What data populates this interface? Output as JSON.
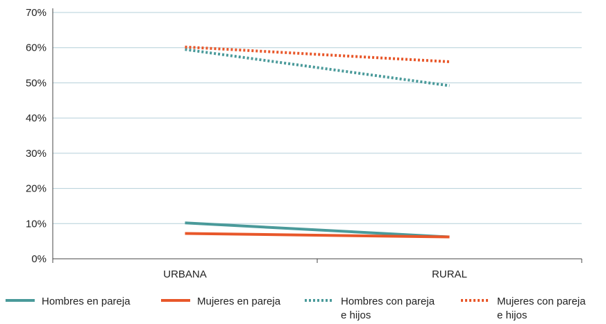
{
  "chart_data": {
    "type": "line",
    "categories": [
      "URBANA",
      "RURAL"
    ],
    "yticks": [
      "0%",
      "10%",
      "20%",
      "30%",
      "40%",
      "50%",
      "60%",
      "70%"
    ],
    "ylim": [
      0,
      70
    ],
    "grid": true,
    "legend_position": "bottom",
    "series": [
      {
        "name": [
          "Hombres en pareja"
        ],
        "values": [
          10.2,
          6.2
        ],
        "color": "#4a9a9a",
        "style": "solid"
      },
      {
        "name": [
          "Mujeres en pareja"
        ],
        "values": [
          7.2,
          6.2
        ],
        "color": "#e8572a",
        "style": "solid"
      },
      {
        "name": [
          "Hombres con pareja",
          "e hijos"
        ],
        "values": [
          59.5,
          49.2
        ],
        "color": "#4a9a9a",
        "style": "dotted"
      },
      {
        "name": [
          "Mujeres con pareja",
          "e hijos"
        ],
        "values": [
          60.2,
          56.0
        ],
        "color": "#e8572a",
        "style": "dotted"
      }
    ]
  }
}
